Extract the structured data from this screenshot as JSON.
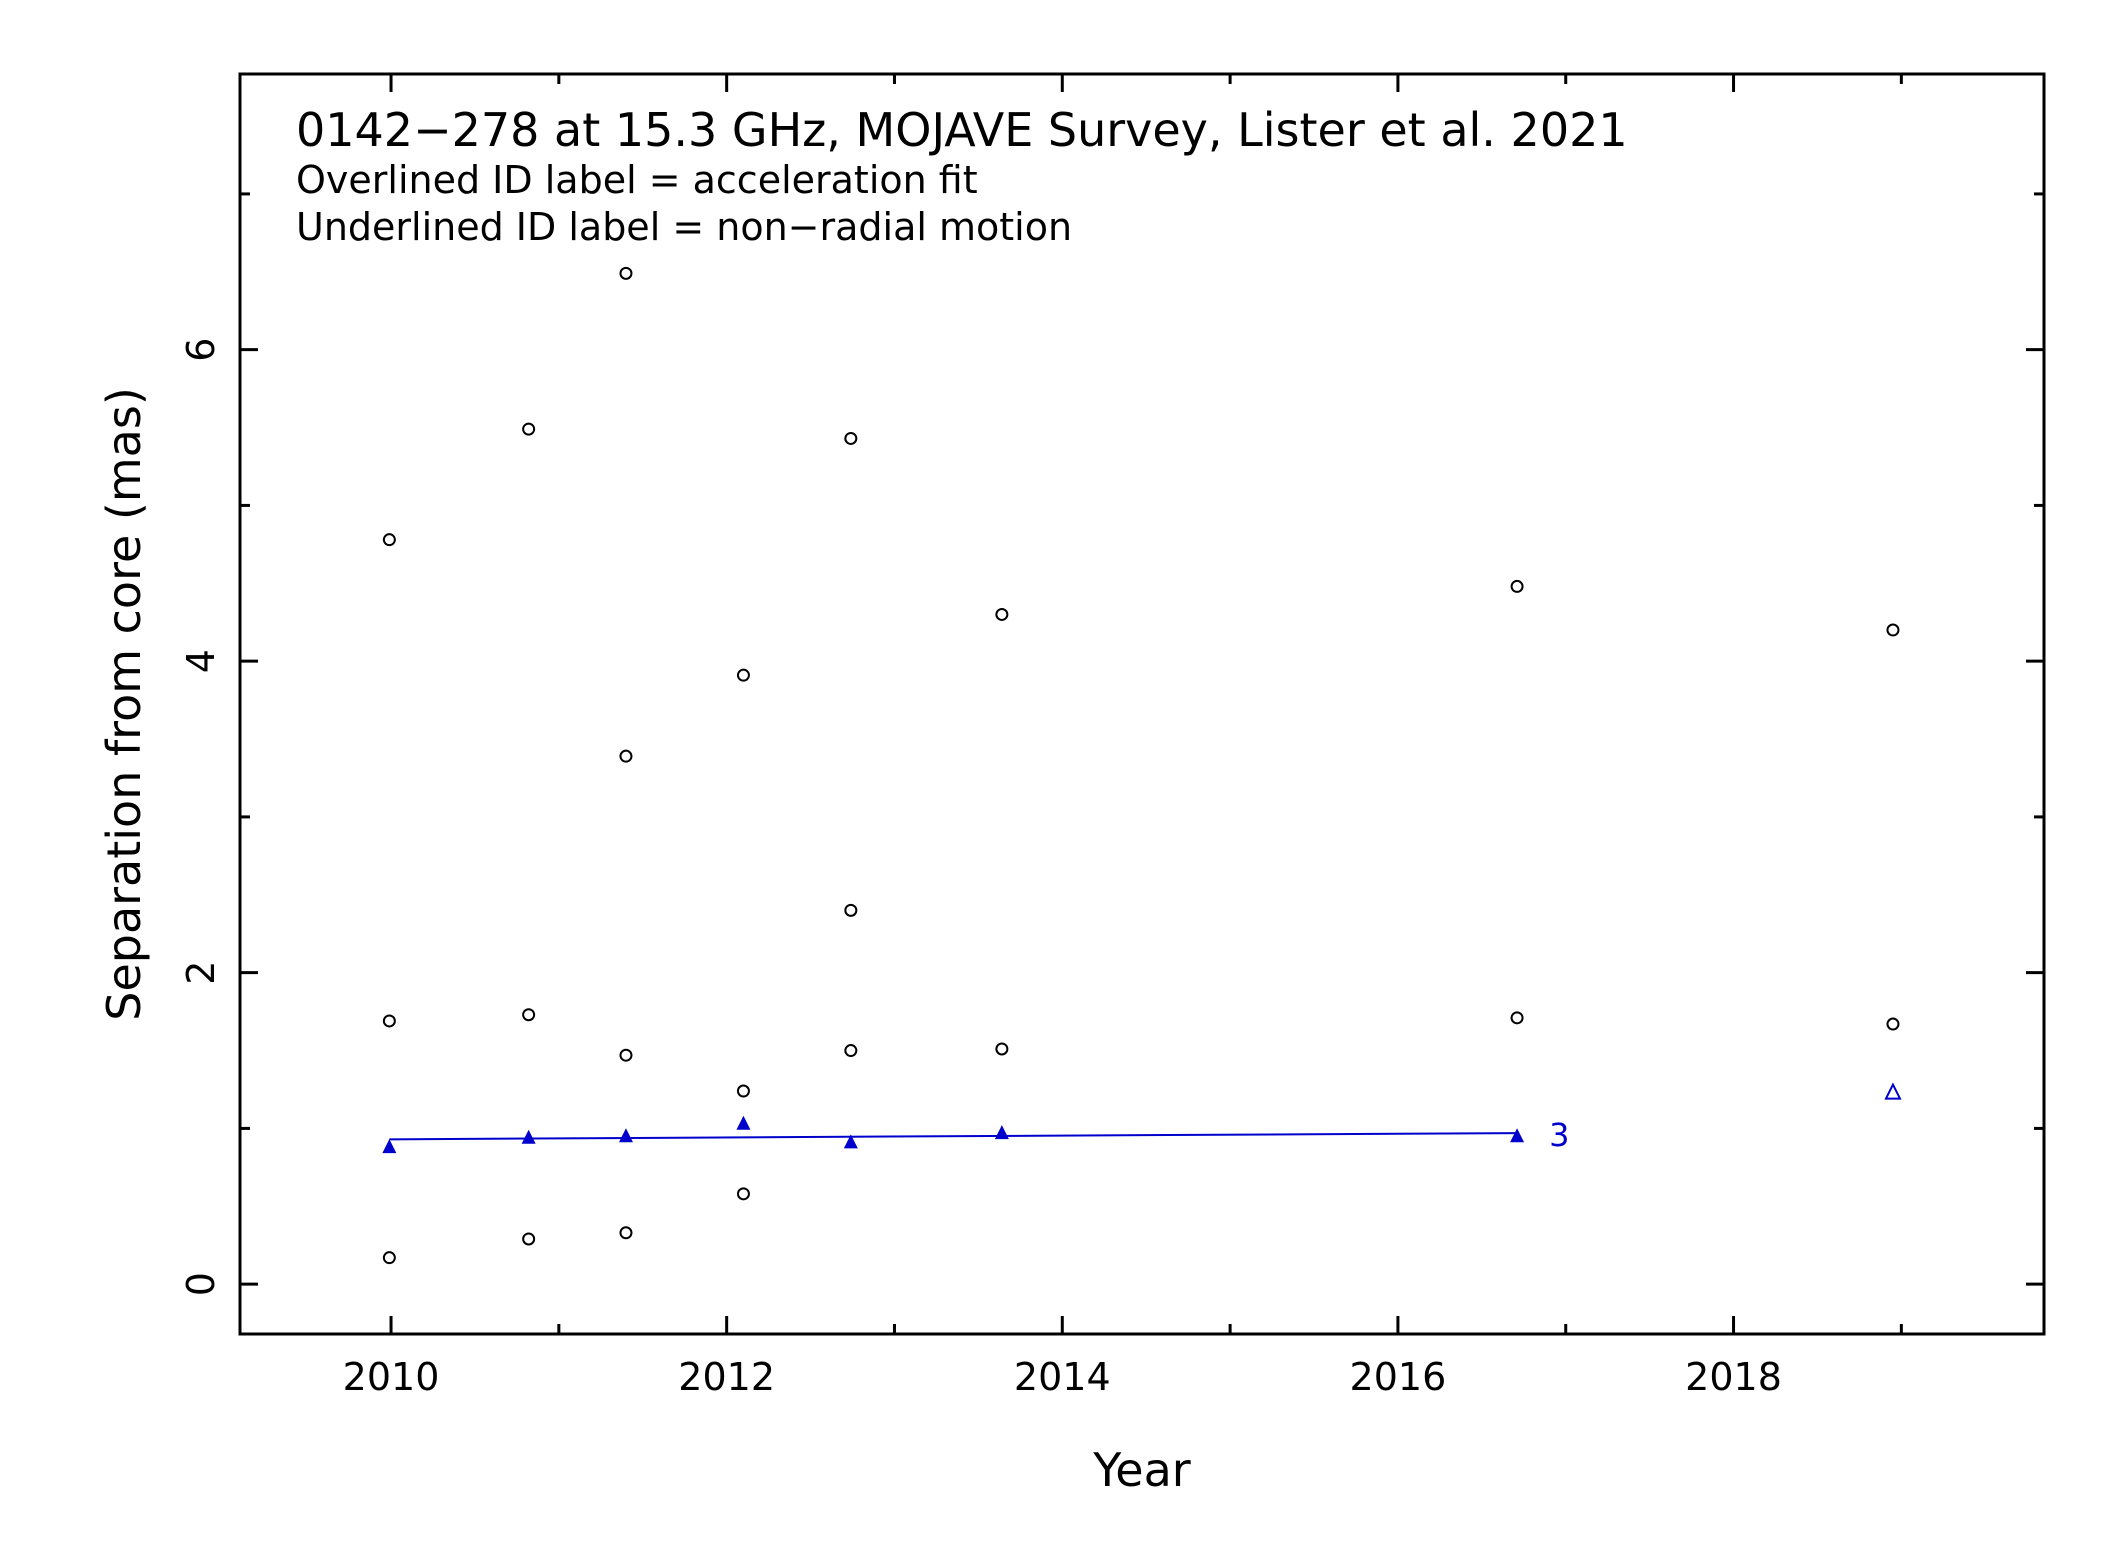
{
  "chart_data": {
    "type": "scatter",
    "title": "0142−278 at 15.3 GHz, MOJAVE Survey, Lister et al. 2021",
    "notes": [
      "Overlined ID label = acceleration fit",
      "Underlined ID label = non−radial motion"
    ],
    "xlabel": "Year",
    "ylabel": "Separation from core (mas)",
    "xlim": [
      2009.1,
      2019.85
    ],
    "ylim": [
      -0.32,
      7.77
    ],
    "x_ticks": [
      2010,
      2012,
      2014,
      2016,
      2018
    ],
    "y_ticks": [
      0,
      2,
      4,
      6
    ],
    "grid": false,
    "series": [
      {
        "marker": "open-circle",
        "color": "#000000",
        "points": [
          {
            "x": 2009.99,
            "y": 0.17
          },
          {
            "x": 2009.99,
            "y": 1.69
          },
          {
            "x": 2009.99,
            "y": 4.78
          },
          {
            "x": 2010.82,
            "y": 0.29
          },
          {
            "x": 2010.82,
            "y": 1.73
          },
          {
            "x": 2010.82,
            "y": 5.49
          },
          {
            "x": 2011.4,
            "y": 0.33
          },
          {
            "x": 2011.4,
            "y": 1.47
          },
          {
            "x": 2011.4,
            "y": 3.39
          },
          {
            "x": 2011.4,
            "y": 6.49
          },
          {
            "x": 2012.1,
            "y": 0.58
          },
          {
            "x": 2012.1,
            "y": 1.24
          },
          {
            "x": 2012.1,
            "y": 3.91
          },
          {
            "x": 2012.74,
            "y": 1.5
          },
          {
            "x": 2012.74,
            "y": 2.4
          },
          {
            "x": 2012.74,
            "y": 5.43
          },
          {
            "x": 2013.64,
            "y": 1.51
          },
          {
            "x": 2013.64,
            "y": 4.3
          },
          {
            "x": 2016.71,
            "y": 1.71
          },
          {
            "x": 2016.71,
            "y": 4.48
          },
          {
            "x": 2018.95,
            "y": 1.67
          },
          {
            "x": 2018.95,
            "y": 4.2
          }
        ]
      },
      {
        "name": "3",
        "marker": "filled-triangle",
        "color": "#0000cc",
        "points": [
          {
            "x": 2009.99,
            "y": 0.88
          },
          {
            "x": 2010.82,
            "y": 0.94
          },
          {
            "x": 2011.4,
            "y": 0.95
          },
          {
            "x": 2012.1,
            "y": 1.03
          },
          {
            "x": 2012.74,
            "y": 0.91
          },
          {
            "x": 2013.64,
            "y": 0.97
          },
          {
            "x": 2016.71,
            "y": 0.95
          }
        ],
        "fit": {
          "x": [
            2009.99,
            2016.71
          ],
          "y": [
            0.93,
            0.97
          ]
        }
      },
      {
        "marker": "open-triangle",
        "color": "#0000cc",
        "points": [
          {
            "x": 2018.95,
            "y": 1.23
          }
        ]
      }
    ]
  }
}
